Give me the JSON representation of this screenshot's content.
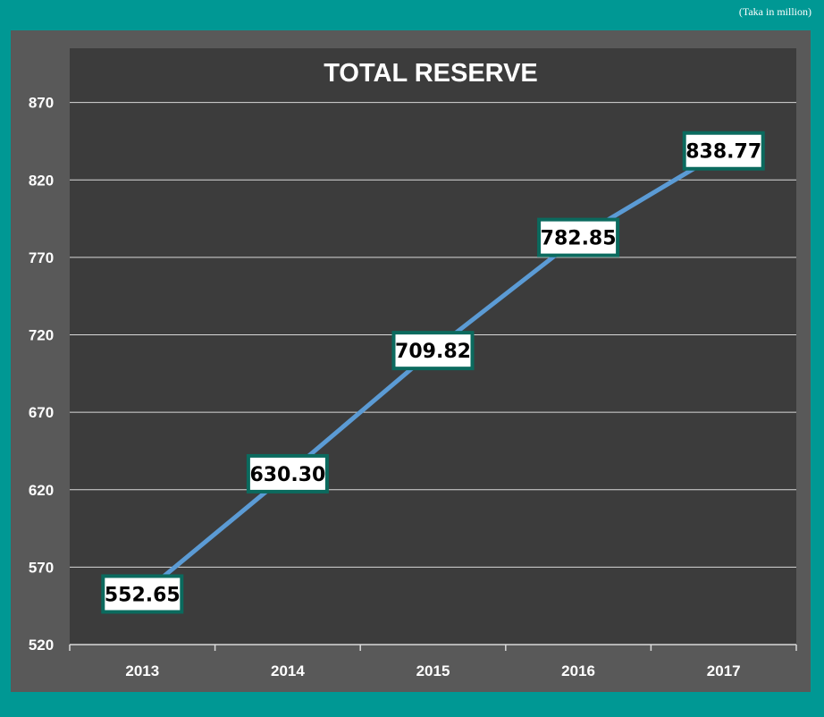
{
  "unit_note": "(Taka in million)",
  "chart_data": {
    "type": "line",
    "title": "TOTAL RESERVE",
    "categories": [
      "2013",
      "2014",
      "2015",
      "2016",
      "2017"
    ],
    "series": [
      {
        "values": [
          552.65,
          630.3,
          709.82,
          782.85,
          838.77
        ]
      }
    ],
    "data_labels": [
      "552.65",
      "630.30",
      "709.82",
      "782.85",
      "838.77"
    ],
    "yticks": [
      520,
      570,
      620,
      670,
      720,
      770,
      820,
      870
    ],
    "ylim": [
      520,
      905
    ],
    "grid": true,
    "colors": {
      "line": "#5b9bd5",
      "label_border": "#0b6a5e",
      "label_fill": "#ffffff",
      "plot_background": "#3c3c3c",
      "chart_background": "#595959",
      "frame": "#009894"
    }
  }
}
